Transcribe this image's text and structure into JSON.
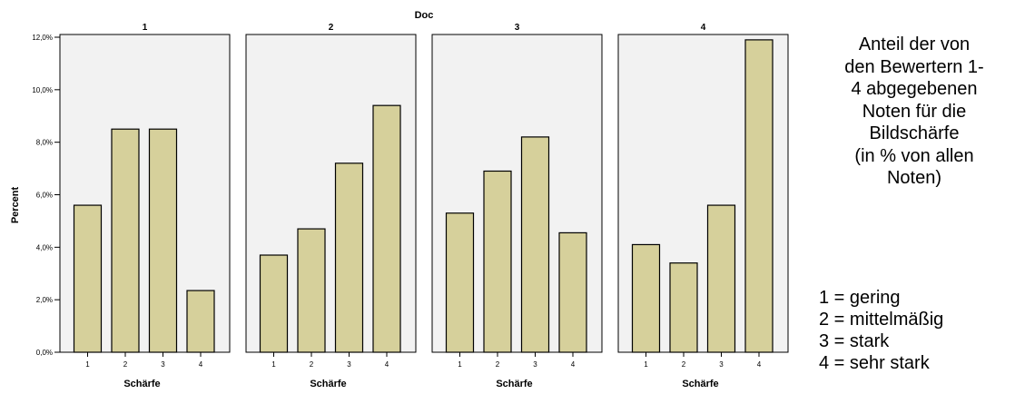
{
  "chart_data": {
    "type": "bar",
    "title": "Doc",
    "ylabel": "Percent",
    "xlabel": "Schärfe",
    "ylim": [
      0,
      12
    ],
    "yticks": [
      "0,0%",
      "2,0%",
      "4,0%",
      "6,0%",
      "8,0%",
      "10,0%",
      "12,0%"
    ],
    "grid": false,
    "bar_color": "#d6d09b",
    "panel_bg": "#f2f2f2",
    "categories": [
      "1",
      "2",
      "3",
      "4"
    ],
    "series": [
      {
        "name": "1",
        "values": [
          5.6,
          8.5,
          8.5,
          2.35
        ]
      },
      {
        "name": "2",
        "values": [
          3.7,
          4.7,
          7.2,
          9.4
        ]
      },
      {
        "name": "3",
        "values": [
          5.3,
          6.9,
          8.2,
          4.55
        ]
      },
      {
        "name": "4",
        "values": [
          4.1,
          3.4,
          5.6,
          11.9
        ]
      }
    ]
  },
  "annotation": {
    "lines": [
      "Anteil der von",
      "den Bewertern 1-",
      "4 abgegebenen",
      "Noten für die",
      "Bildschärfe",
      "(in % von allen",
      "Noten)"
    ]
  },
  "legend": {
    "items": [
      "1 = gering",
      "2 = mittelmäßig",
      "3 = stark",
      "4 = sehr stark"
    ]
  }
}
